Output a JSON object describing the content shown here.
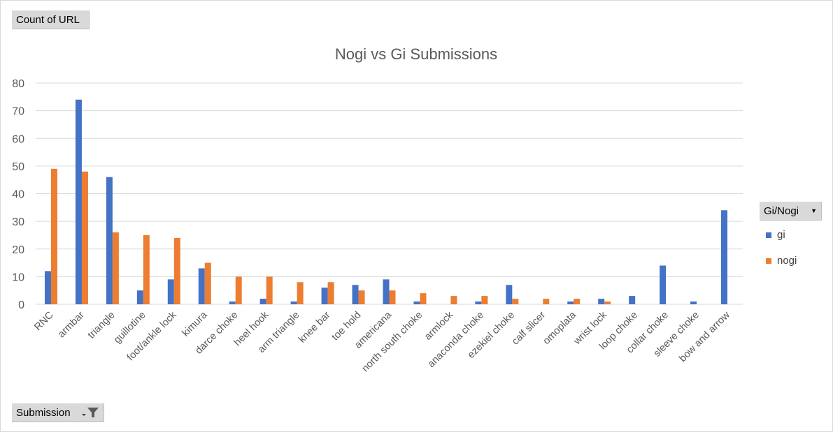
{
  "value_field": "Count of URL",
  "axis_field": "Submission",
  "legend_field": "Gi/Nogi",
  "colors": {
    "gi": "#4472c4",
    "nogi": "#ed7d31",
    "grid": "#d9d9d9",
    "text": "#595959"
  },
  "icons": {
    "dropdown": "dropdown-arrow-icon",
    "filter": "filter-funnel-icon"
  },
  "chart_data": {
    "type": "bar",
    "title": "Nogi vs Gi Submissions",
    "xlabel": "",
    "ylabel": "",
    "ylim": [
      0,
      80
    ],
    "yticks": [
      0,
      10,
      20,
      30,
      40,
      50,
      60,
      70,
      80
    ],
    "grid": true,
    "legend_position": "right",
    "categories": [
      "RNC",
      "armbar",
      "triangle",
      "guillotine",
      "foot/ankle lock",
      "kimura",
      "darce choke",
      "heel hook",
      "arm triangle",
      "knee bar",
      "toe hold",
      "americana",
      "north south choke",
      "armlock",
      "anaconda choke",
      "ezekiel choke",
      "calf slicer",
      "omoplata",
      "wrist lock",
      "loop choke",
      "collar choke",
      "sleeve choke",
      "bow and arrow"
    ],
    "series": [
      {
        "name": "gi",
        "values": [
          12,
          74,
          46,
          5,
          9,
          13,
          1,
          2,
          1,
          6,
          7,
          9,
          1,
          null,
          1,
          7,
          null,
          1,
          2,
          3,
          14,
          1,
          34
        ]
      },
      {
        "name": "nogi",
        "values": [
          49,
          48,
          26,
          25,
          24,
          15,
          10,
          10,
          8,
          8,
          5,
          5,
          4,
          3,
          3,
          2,
          2,
          2,
          1,
          null,
          null,
          null,
          null
        ]
      }
    ]
  }
}
